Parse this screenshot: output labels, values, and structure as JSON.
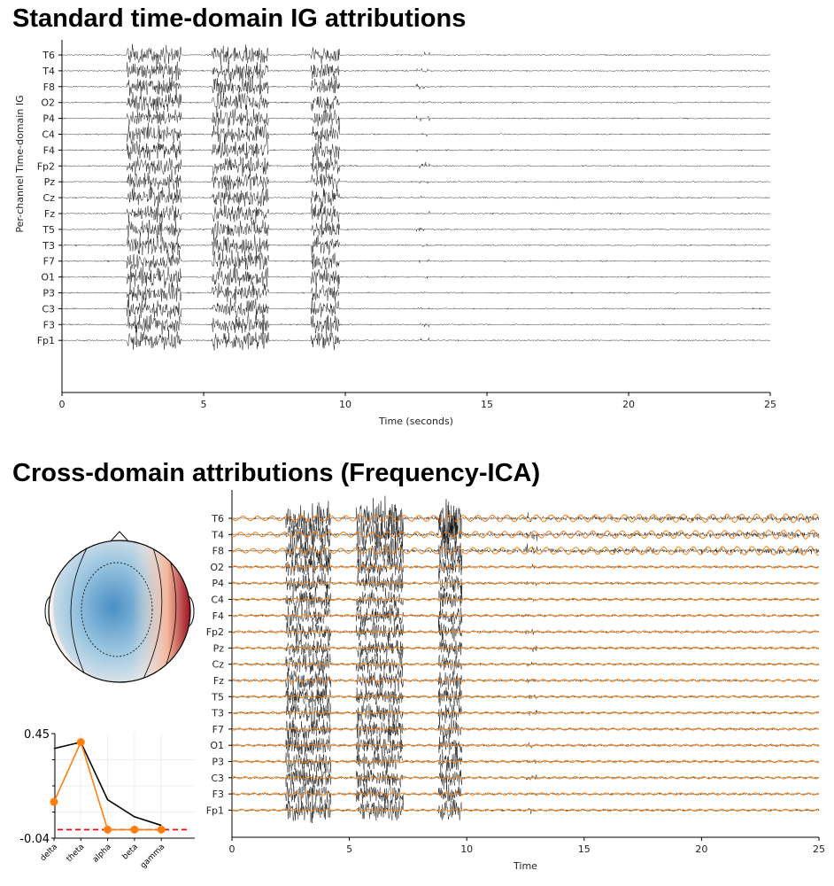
{
  "chart_data": [
    {
      "type": "line",
      "title": "Standard time-domain IG attributions",
      "xlabel": "Time (seconds)",
      "ylabel": "Per-channel Time-domain IG",
      "xlim": [
        0,
        25
      ],
      "xticks": [
        "0",
        "5",
        "10",
        "15",
        "20",
        "25"
      ],
      "channels": [
        "T6",
        "T4",
        "F8",
        "O2",
        "P4",
        "C4",
        "F4",
        "Fp2",
        "Pz",
        "Cz",
        "Fz",
        "T5",
        "T3",
        "F7",
        "O1",
        "P3",
        "C3",
        "F3",
        "Fp1"
      ]
    },
    {
      "type": "line",
      "title": "Cross-domain attributions (Frequency-ICA)",
      "xlabel": "Time",
      "xlim": [
        0,
        25
      ],
      "xticks": [
        "0",
        "5",
        "10",
        "15",
        "20",
        "25"
      ],
      "channels": [
        "T6",
        "T4",
        "F8",
        "O2",
        "P4",
        "C4",
        "F4",
        "Fp2",
        "Pz",
        "Cz",
        "Fz",
        "T5",
        "T3",
        "F7",
        "O1",
        "P3",
        "C3",
        "F3",
        "Fp1"
      ],
      "colors": {
        "signal": "#000000",
        "overlay": "#ff7f0e"
      }
    },
    {
      "type": "line",
      "categories": [
        "delta",
        "theta",
        "alpha",
        "beta",
        "gamma"
      ],
      "ylim": [
        -0.04,
        0.45
      ],
      "yticks": [
        "0.45",
        "-0.04"
      ],
      "series": [
        {
          "color": "#000000",
          "values": [
            0.38,
            0.41,
            0.14,
            0.06,
            0.02
          ]
        },
        {
          "color": "#ff7f0e",
          "values": [
            0.13,
            0.41,
            0.0,
            0.0,
            0.0
          ]
        }
      ],
      "reference_line": {
        "value": 0.0,
        "color": "#ff0000",
        "style": "dashed"
      }
    },
    {
      "type": "topomap",
      "colormap": "RdBu_r"
    }
  ]
}
